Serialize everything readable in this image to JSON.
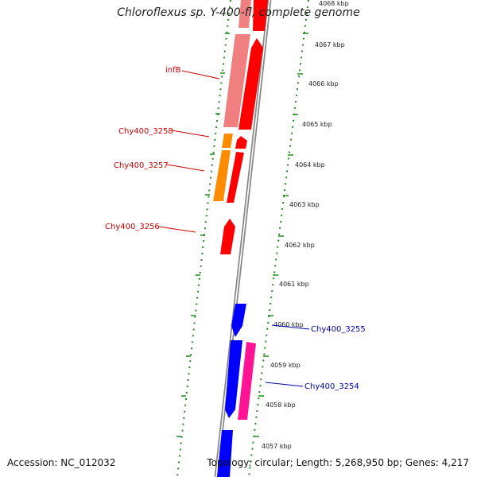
{
  "title": "Chloroflexus sp. Y-400-fl, complete genome",
  "accession_text": "Accession: NC_012032",
  "topology_text": "Topology: circular; Length: 5,268,950 bp; Genes: 4,217",
  "colors": {
    "forward_cds": "#ff0000",
    "forward_pale": "#f08080",
    "forward_orange": "#ff8c00",
    "reverse_cds": "#0000ff",
    "reverse_pink": "#ff1493",
    "backbone": "#888888",
    "dots": "#1e8c1e",
    "label_red": "#cc0000",
    "label_blue": "#0000aa"
  },
  "scale_ticks": [
    "4068 kbp",
    "4067 kbp",
    "4066 kbp",
    "4065 kbp",
    "4064 kbp",
    "4063 kbp",
    "4062 kbp",
    "4061 kbp",
    "4060 kbp",
    "4059 kbp",
    "4058 kbp",
    "4057 kbp"
  ],
  "gene_labels": [
    "infB",
    "Chy400_3258",
    "Chy400_3257",
    "Chy400_3256",
    "Chy400_3255",
    "Chy400_3254"
  ]
}
